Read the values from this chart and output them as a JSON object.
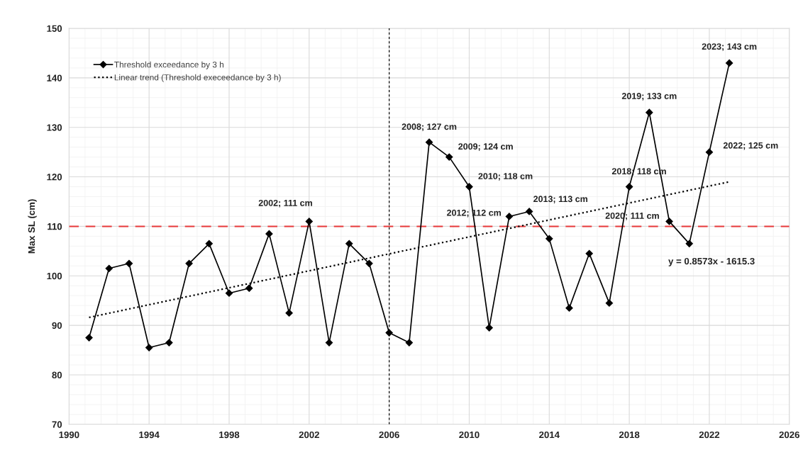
{
  "chart_data": {
    "type": "line",
    "ylabel": "Max SL (cm)",
    "xlim": [
      1990,
      2026
    ],
    "xticks": [
      1990,
      1994,
      1998,
      2002,
      2006,
      2010,
      2014,
      2018,
      2022,
      2026
    ],
    "ylim": [
      70,
      150
    ],
    "yticks": [
      70,
      80,
      90,
      100,
      110,
      120,
      130,
      140,
      150
    ],
    "grid": true,
    "legend": "top left",
    "annotations": [
      "y = 0.8573x - 1615.3"
    ],
    "ref_lines": [
      {
        "axis": "y",
        "value": 110,
        "color": "#e8393a",
        "line_style": "dashed"
      },
      {
        "axis": "x",
        "value": 2006,
        "color": "#000000",
        "line_style": "dotted"
      }
    ],
    "series": [
      {
        "name": "Threshold exceedance by 3 h",
        "color": "#000000",
        "marker": "diamond",
        "line_style": "solid",
        "x": [
          1991,
          1992,
          1993,
          1994,
          1995,
          1996,
          1997,
          1998,
          1999,
          2000,
          2001,
          2002,
          2003,
          2004,
          2005,
          2006,
          2007,
          2008,
          2009,
          2010,
          2011,
          2012,
          2013,
          2014,
          2015,
          2016,
          2017,
          2018,
          2019,
          2020,
          2021,
          2022,
          2023
        ],
        "values": [
          87.5,
          101.5,
          102.5,
          85.5,
          86.5,
          102.5,
          106.5,
          96.5,
          97.5,
          108.5,
          92.5,
          111,
          86.5,
          106.5,
          102.5,
          88.5,
          86.5,
          127,
          124,
          118,
          89.5,
          112,
          113,
          107.5,
          93.5,
          104.5,
          94.5,
          118,
          133,
          111,
          106.5,
          125,
          143
        ],
        "value_labels": [
          null,
          null,
          null,
          null,
          null,
          null,
          null,
          null,
          null,
          null,
          null,
          "2002; 111 cm",
          null,
          null,
          null,
          null,
          null,
          "2008; 127 cm",
          "2009; 124 cm",
          "2010; 118 cm",
          null,
          "2012; 112 cm",
          "2013; 113 cm",
          null,
          null,
          null,
          null,
          "2018; 118 cm",
          "2019; 133 cm",
          "2020; 111 cm",
          null,
          "2022; 125 cm",
          "2023; 143 cm"
        ]
      },
      {
        "name": "Linear trend (Threshold execeedance by 3 h)",
        "color": "#000000",
        "marker": "none",
        "line_style": "dotted",
        "x": [
          1991,
          2023
        ],
        "values": [
          91.6,
          119.0
        ]
      }
    ]
  }
}
